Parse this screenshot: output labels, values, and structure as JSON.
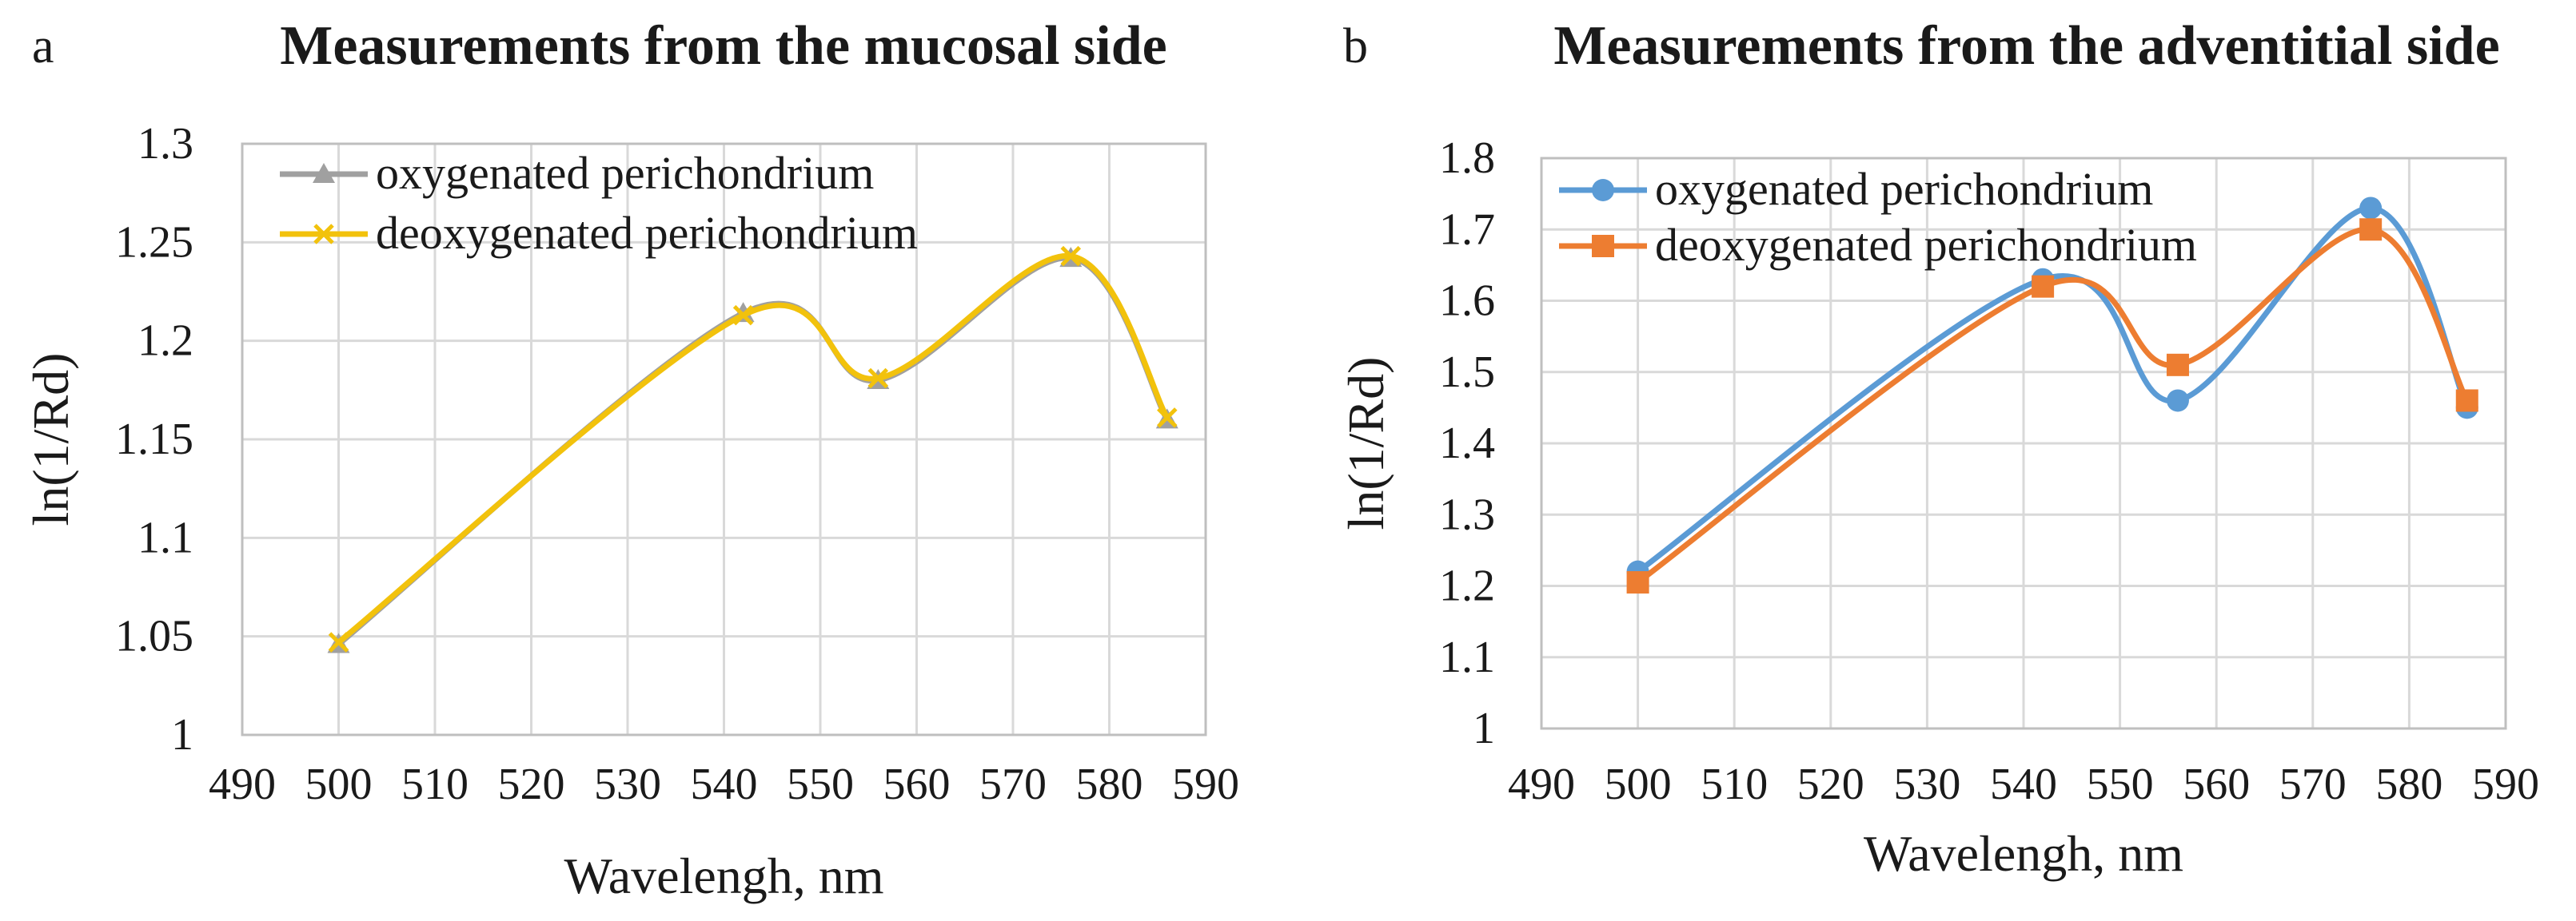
{
  "chart_data": [
    {
      "panel_letter": "a",
      "type": "line",
      "title": "Measurements from the mucosal side",
      "xlabel": "Wavelengh,  nm",
      "ylabel": "ln(1/Rd)",
      "xlim": [
        490,
        590
      ],
      "ylim": [
        1,
        1.3
      ],
      "grid": true,
      "smooth": true,
      "legend_position": "top-left",
      "x_ticks": [
        "490",
        "500",
        "510",
        "520",
        "530",
        "540",
        "550",
        "560",
        "570",
        "580",
        "590"
      ],
      "y_ticks": [
        "1",
        "1.05",
        "1.1",
        "1.15",
        "1.2",
        "1.25",
        "1.3"
      ],
      "series": [
        {
          "name": "oxygenated perichondrium",
          "color": "#a0a0a0",
          "marker": "triangle",
          "x": [
            500,
            542,
            556,
            576,
            586
          ],
          "y": [
            1.046,
            1.214,
            1.18,
            1.242,
            1.16
          ]
        },
        {
          "name": "deoxygenated perichondrium",
          "color": "#f2c20c",
          "marker": "x",
          "x": [
            500,
            542,
            556,
            576,
            586
          ],
          "y": [
            1.047,
            1.213,
            1.181,
            1.243,
            1.161
          ]
        }
      ]
    },
    {
      "panel_letter": "b",
      "type": "line",
      "title": "Measurements from the adventitial side",
      "xlabel": "Wavelengh,  nm",
      "ylabel": "ln(1/Rd)",
      "xlim": [
        490,
        590
      ],
      "ylim": [
        1,
        1.8
      ],
      "grid": true,
      "smooth": true,
      "legend_position": "top-left",
      "x_ticks": [
        "490",
        "500",
        "510",
        "520",
        "530",
        "540",
        "550",
        "560",
        "570",
        "580",
        "590"
      ],
      "y_ticks": [
        "1",
        "1.1",
        "1.2",
        "1.3",
        "1.4",
        "1.5",
        "1.6",
        "1.7",
        "1.8"
      ],
      "series": [
        {
          "name": "oxygenated perichondrium",
          "color": "#5b9bd5",
          "marker": "circle",
          "x": [
            500,
            542,
            556,
            576,
            586
          ],
          "y": [
            1.22,
            1.63,
            1.46,
            1.73,
            1.45
          ]
        },
        {
          "name": "deoxygenated perichondrium",
          "color": "#ed7d31",
          "marker": "square",
          "x": [
            500,
            542,
            556,
            576,
            586
          ],
          "y": [
            1.205,
            1.62,
            1.51,
            1.7,
            1.46
          ]
        }
      ]
    }
  ]
}
